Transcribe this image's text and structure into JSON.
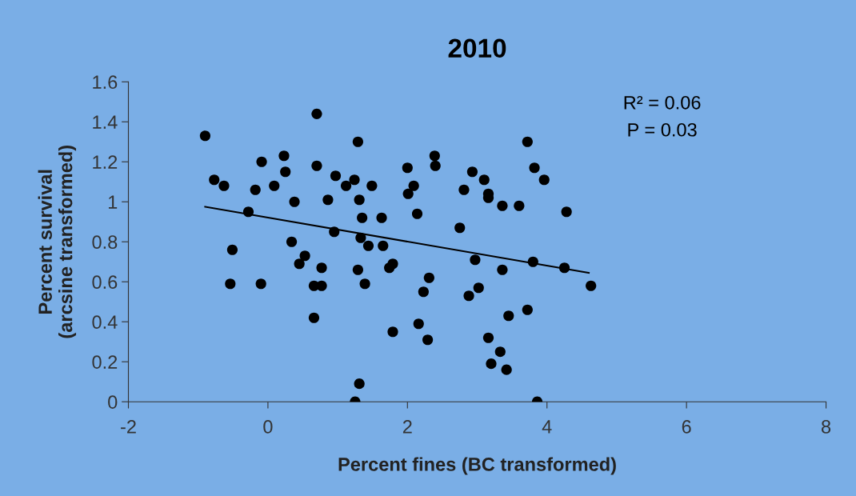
{
  "chart_data": {
    "type": "scatter",
    "title": "2010",
    "xlabel": "Percent fines (BC transformed)",
    "ylabel": "Percent survival\n(arcsine transformed)",
    "series": [
      {
        "color": "#000000",
        "marker": "circle",
        "x": [
          -0.9,
          -0.77,
          -0.63,
          -0.28,
          -0.51,
          -0.54,
          -0.18,
          -0.09,
          -0.1,
          0.09,
          0.23,
          0.25,
          0.38,
          0.34,
          0.45,
          0.53,
          0.77,
          0.66,
          0.66,
          0.77,
          0.7,
          0.7,
          0.86,
          0.97,
          0.95,
          1.12,
          1.24,
          1.29,
          1.31,
          1.35,
          1.33,
          1.29,
          1.39,
          1.44,
          1.49,
          1.63,
          1.65,
          1.74,
          1.79,
          1.79,
          1.31,
          1.25,
          2.0,
          2.01,
          2.09,
          2.14,
          2.16,
          2.23,
          2.31,
          2.29,
          2.39,
          2.4,
          2.75,
          2.81,
          2.88,
          2.93,
          2.97,
          3.02,
          3.1,
          3.16,
          3.16,
          3.16,
          3.2,
          3.36,
          3.36,
          3.33,
          3.42,
          3.45,
          3.6,
          3.72,
          3.72,
          3.8,
          3.82,
          3.86,
          3.96,
          4.25,
          4.28,
          4.63
        ],
        "values": [
          1.33,
          1.11,
          1.08,
          0.95,
          0.76,
          0.59,
          1.06,
          1.2,
          0.59,
          1.08,
          1.23,
          1.15,
          1.0,
          0.8,
          0.69,
          0.73,
          0.58,
          0.42,
          0.58,
          0.67,
          1.18,
          1.44,
          1.01,
          1.13,
          0.85,
          1.08,
          1.11,
          1.3,
          1.01,
          0.92,
          0.82,
          0.66,
          0.59,
          0.78,
          1.08,
          0.92,
          0.78,
          0.67,
          0.69,
          0.35,
          0.09,
          0.0,
          1.17,
          1.04,
          1.08,
          0.94,
          0.39,
          0.55,
          0.62,
          0.31,
          1.23,
          1.18,
          0.87,
          1.06,
          0.53,
          1.15,
          0.71,
          0.57,
          1.11,
          1.04,
          1.02,
          0.32,
          0.19,
          0.98,
          0.66,
          0.25,
          0.16,
          0.43,
          0.98,
          1.3,
          0.46,
          0.7,
          1.17,
          0.0,
          1.11,
          0.67,
          0.95,
          0.58
        ]
      },
      {
        "type": "line",
        "color": "#000000",
        "marker": "none",
        "line_style": "solid",
        "x": [
          -0.9,
          4.6
        ],
        "values": [
          0.975,
          0.645
        ]
      }
    ],
    "annotations": [
      "R² = 0.06",
      "P = 0.03"
    ],
    "xlim": [
      -2,
      8
    ],
    "xticks": [
      -2,
      0,
      2,
      4,
      6,
      8
    ],
    "ylim": [
      0,
      1.6
    ],
    "yticks": [
      0,
      {
        "value": 0.2,
        "label": "0.2"
      },
      {
        "value": 0.4,
        "label": "0.4"
      },
      {
        "value": 0.6,
        "label": "0.6"
      },
      {
        "value": 0.8,
        "label": "0.8"
      },
      1,
      {
        "value": 1.2,
        "label": "1.2"
      },
      {
        "value": 1.4,
        "label": "1.4"
      },
      {
        "value": 1.6,
        "label": "1.6"
      }
    ],
    "grid": false,
    "legend": false
  }
}
